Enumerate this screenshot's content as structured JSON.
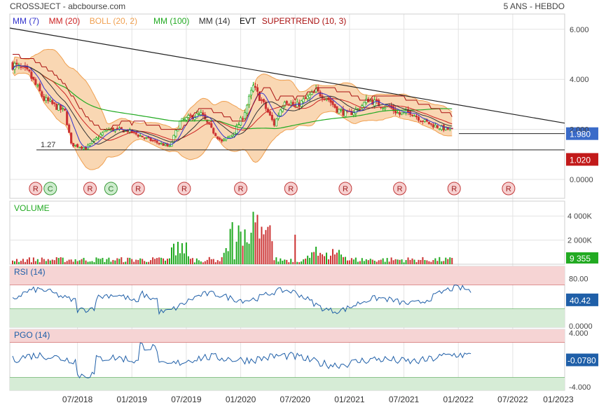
{
  "header": {
    "title": "CROSSJECT - abcbourse.com",
    "period": "5 ANS - HEBDO"
  },
  "legend": [
    {
      "label": "MM (7)",
      "color": "#3333cc"
    },
    {
      "label": "MM (20)",
      "color": "#cc2222"
    },
    {
      "label": "BOLL (20, 2)",
      "color": "#f0a050"
    },
    {
      "label": "MM (100)",
      "color": "#22aa22"
    },
    {
      "label": "MM (14)",
      "color": "#333333"
    },
    {
      "label": "EVT",
      "color": "#000000"
    },
    {
      "label": "SUPERTREND (10, 3)",
      "color": "#aa1111"
    }
  ],
  "colors": {
    "up": "#22aa22",
    "down": "#cc3333",
    "boll_fill": "#f9d7b3",
    "boll_line": "#f0a050",
    "grid": "#e3e3e3",
    "rsi_line": "#1f5fa8",
    "price_badge": "#3a6bc9",
    "support_badge": "#c21a1a"
  },
  "chart_data": [
    {
      "type": "candlestick",
      "panel": "price",
      "x_ticks": [
        "07/2018",
        "01/2019",
        "07/2019",
        "01/2020",
        "07/2020",
        "01/2021",
        "07/2021",
        "01/2022",
        "07/2022",
        "01/2023"
      ],
      "y_ticks": [
        "6.000",
        "4.000",
        "2.000",
        "0.0000"
      ],
      "ylim": [
        -0.1,
        6.4
      ],
      "current_price": "1.980",
      "support_level": "1.020",
      "support_label": "1.27",
      "signals": [
        "R",
        "C",
        "R",
        "C",
        "R",
        "R",
        "R",
        "R",
        "R",
        "R",
        "R",
        "R"
      ],
      "key_points": [
        [
          0,
          4.6
        ],
        [
          8,
          4.2
        ],
        [
          15,
          3.2
        ],
        [
          25,
          2.7
        ],
        [
          28,
          1.4
        ],
        [
          35,
          1.25
        ],
        [
          45,
          2.0
        ],
        [
          55,
          1.95
        ],
        [
          65,
          1.6
        ],
        [
          75,
          1.3
        ],
        [
          80,
          2.3
        ],
        [
          85,
          2.5
        ],
        [
          90,
          2.6
        ],
        [
          95,
          2.0
        ],
        [
          100,
          1.5
        ],
        [
          105,
          1.8
        ],
        [
          110,
          2.5
        ],
        [
          115,
          3.7
        ],
        [
          120,
          3.0
        ],
        [
          125,
          2.2
        ],
        [
          130,
          3.2
        ],
        [
          135,
          2.9
        ],
        [
          140,
          3.2
        ],
        [
          145,
          3.5
        ],
        [
          150,
          3.3
        ],
        [
          155,
          2.8
        ],
        [
          160,
          2.6
        ],
        [
          165,
          2.8
        ],
        [
          170,
          3.2
        ],
        [
          175,
          3.0
        ],
        [
          180,
          2.9
        ],
        [
          185,
          2.6
        ],
        [
          190,
          2.7
        ],
        [
          195,
          2.4
        ],
        [
          200,
          2.2
        ],
        [
          205,
          2.05
        ],
        [
          210,
          1.98
        ]
      ]
    },
    {
      "type": "bar",
      "panel": "volume",
      "title": "VOLUME",
      "y_ticks": [
        "4 000K",
        "2 000K"
      ],
      "ylim": [
        0,
        5000
      ],
      "current_value": "9 355"
    },
    {
      "type": "line",
      "panel": "rsi",
      "title": "RSI (14)",
      "y_ticks": [
        "80.00",
        "0.0000"
      ],
      "ylim": [
        0,
        100
      ],
      "overbought": 70,
      "oversold": 30,
      "current_value": "40.42"
    },
    {
      "type": "line",
      "panel": "pgo",
      "title": "PGO (14)",
      "y_ticks": [
        "4.000",
        "-4.000"
      ],
      "ylim": [
        -4.5,
        4.5
      ],
      "upper": 2.6,
      "lower": -2.6,
      "current_value": "-0.0780"
    }
  ]
}
